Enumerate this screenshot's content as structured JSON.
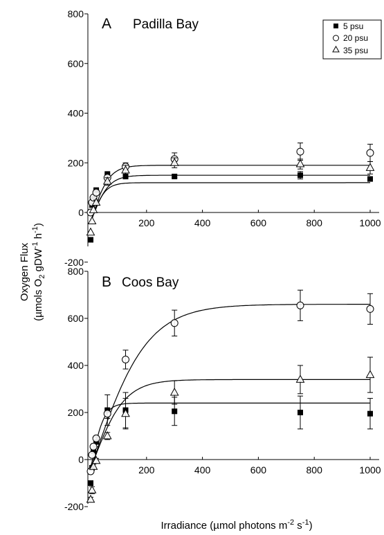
{
  "chart_data": [
    {
      "type": "scatter",
      "panel_letter": "A",
      "title": "Padilla Bay",
      "xlabel": "",
      "ylabel": "",
      "xlim": [
        -10,
        1020
      ],
      "ylim": [
        -200,
        800
      ],
      "xticks": [
        200,
        400,
        600,
        800,
        1000
      ],
      "yticks": [
        -200,
        0,
        200,
        400,
        600,
        800
      ],
      "legend": {
        "placement": "top-right",
        "entries": [
          {
            "label": "5 psu",
            "marker": "filled-square"
          },
          {
            "label": "20 psu",
            "marker": "open-circle"
          },
          {
            "label": "35 psu",
            "marker": "open-triangle"
          }
        ]
      },
      "series": [
        {
          "name": "5 psu",
          "marker": "filled-square",
          "x": [
            0,
            5,
            10,
            20,
            60,
            125,
            300,
            750,
            1000
          ],
          "y": [
            -110,
            30,
            55,
            90,
            155,
            145,
            145,
            150,
            135
          ],
          "err": [
            0,
            0,
            0,
            0,
            0,
            10,
            5,
            15,
            5
          ],
          "fit": {
            "pmax": 160,
            "alpha": 3.2,
            "r": -40
          }
        },
        {
          "name": "20 psu",
          "marker": "open-circle",
          "x": [
            0,
            5,
            10,
            20,
            60,
            125,
            300,
            750,
            1000
          ],
          "y": [
            0,
            40,
            60,
            80,
            140,
            185,
            215,
            245,
            240
          ],
          "err": [
            0,
            0,
            0,
            10,
            15,
            15,
            25,
            35,
            35
          ],
          "fit": {
            "pmax": 230,
            "alpha": 3.6,
            "r": -40
          }
        },
        {
          "name": "35 psu",
          "marker": "open-triangle",
          "x": [
            0,
            5,
            10,
            20,
            60,
            125,
            300,
            750,
            1000
          ],
          "y": [
            -80,
            -35,
            10,
            40,
            125,
            170,
            200,
            195,
            180
          ],
          "err": [
            0,
            0,
            0,
            10,
            15,
            20,
            20,
            20,
            25
          ],
          "fit": {
            "pmax": 190,
            "alpha": 3.0,
            "r": -40
          }
        }
      ]
    },
    {
      "type": "scatter",
      "panel_letter": "B",
      "title": "Coos Bay",
      "xlabel": "Irradiance (µmol photons m-2 s-1)",
      "ylabel": "Oxygen Flux (µmols O2 gDW-1 h-1)",
      "xlim": [
        -10,
        1020
      ],
      "ylim": [
        -200,
        800
      ],
      "xticks": [
        200,
        400,
        600,
        800,
        1000
      ],
      "yticks": [
        -200,
        0,
        200,
        400,
        600,
        800
      ],
      "series": [
        {
          "name": "5 psu",
          "marker": "filled-square",
          "x": [
            0,
            5,
            10,
            20,
            60,
            125,
            300,
            750,
            1000
          ],
          "y": [
            -100,
            -35,
            35,
            75,
            210,
            210,
            205,
            200,
            195
          ],
          "err": [
            0,
            0,
            0,
            20,
            65,
            75,
            60,
            70,
            65
          ],
          "fit": {
            "pmax": 280,
            "alpha": 6.0,
            "r": -40
          }
        },
        {
          "name": "20 psu",
          "marker": "open-circle",
          "x": [
            0,
            5,
            10,
            20,
            60,
            125,
            300,
            750,
            1000
          ],
          "y": [
            -50,
            20,
            55,
            90,
            195,
            425,
            580,
            655,
            640
          ],
          "err": [
            0,
            0,
            10,
            10,
            20,
            40,
            55,
            65,
            65
          ],
          "fit": {
            "pmax": 700,
            "alpha": 3.5,
            "r": -40
          }
        },
        {
          "name": "35 psu",
          "marker": "open-triangle",
          "x": [
            0,
            5,
            10,
            20,
            60,
            125,
            300,
            750,
            1000
          ],
          "y": [
            -170,
            -130,
            -30,
            -5,
            100,
            195,
            285,
            340,
            360
          ],
          "err": [
            10,
            15,
            10,
            10,
            15,
            65,
            50,
            60,
            75
          ],
          "fit": {
            "pmax": 380,
            "alpha": 3.2,
            "r": -40
          }
        }
      ]
    }
  ],
  "labels": {
    "ylabel_line1": "Oxygen Flux",
    "ylabel_line2_pre": "(µmols O",
    "ylabel_line2_sub": "2",
    "ylabel_line2_mid": " gDW",
    "ylabel_line2_sup1": "-1",
    "ylabel_line2_mid2": " h",
    "ylabel_line2_sup2": "-1",
    "ylabel_line2_post": ")",
    "xlabel_pre": "Irradiance (µmol photons m",
    "xlabel_sup1": "-2",
    "xlabel_mid": " s",
    "xlabel_sup2": "-1",
    "xlabel_post": ")"
  }
}
